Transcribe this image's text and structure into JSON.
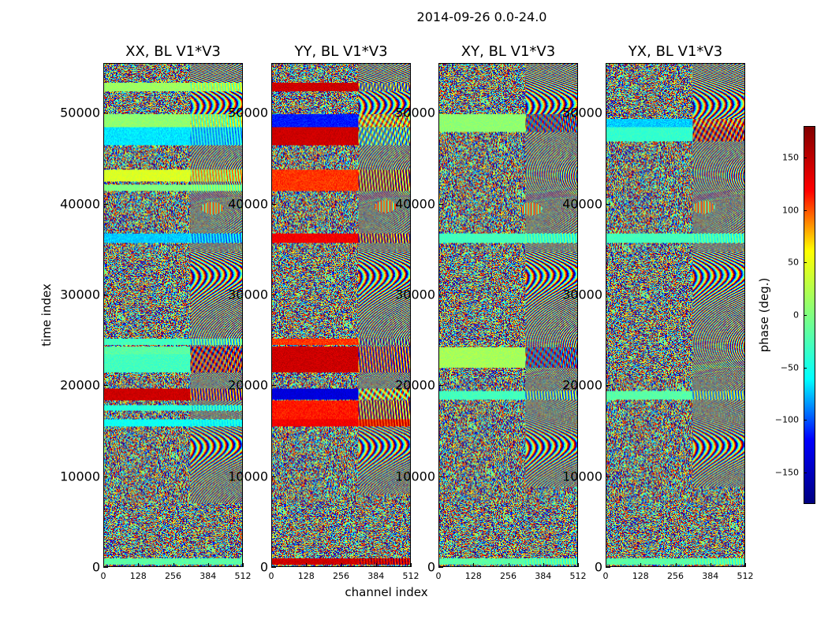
{
  "title": "2014-09-26 0.0-24.0",
  "xlabel": "channel index",
  "ylabel": "time index",
  "colorbar_label": "phase (deg.)",
  "colors": {
    "jet": [
      "#000080",
      "#0000ff",
      "#00ffff",
      "#80ff80",
      "#ffff00",
      "#ff0000",
      "#800000"
    ],
    "axis": "#000000",
    "background": "#ffffff"
  },
  "chart_data": {
    "type": "heatmap",
    "colormap": "jet",
    "x_range": [
      0,
      512
    ],
    "y_range": [
      0,
      55500
    ],
    "x_ticks": [
      0,
      128,
      256,
      384,
      512
    ],
    "x_tick_labels": [
      "0",
      "128",
      "256",
      "384",
      "512"
    ],
    "y_ticks": [
      0,
      10000,
      20000,
      30000,
      40000,
      50000
    ],
    "y_tick_labels": [
      "0",
      "10000",
      "20000",
      "30000",
      "40000",
      "50000"
    ],
    "colorbar": {
      "range": [
        -180,
        180
      ],
      "ticks": [
        -150,
        -100,
        -50,
        0,
        50,
        100,
        150
      ],
      "tick_labels": [
        "−150",
        "−100",
        "−50",
        "0",
        "50",
        "100",
        "150"
      ]
    },
    "panels": [
      {
        "title": "XX, BL V1*V3",
        "flag_bands": [
          [
            200,
            900,
            0.45,
            0.0
          ],
          [
            15500,
            16300,
            0.35,
            0.04
          ],
          [
            17200,
            17800,
            0.38,
            0.1
          ],
          [
            18300,
            19600,
            0.9,
            0.3
          ],
          [
            21500,
            23500,
            0.42,
            0.55
          ],
          [
            23500,
            24300,
            0.45,
            0.6
          ],
          [
            24500,
            25200,
            0.42,
            0.2
          ],
          [
            35800,
            36800,
            0.3,
            0.1
          ],
          [
            41500,
            42200,
            0.5,
            0.1
          ],
          [
            42500,
            43800,
            0.62,
            0.2
          ],
          [
            46500,
            48500,
            0.32,
            0.1
          ],
          [
            48500,
            50000,
            0.52,
            0.2
          ],
          [
            52500,
            53500,
            0.54,
            0.15
          ]
        ],
        "stripe_bands": [
          [
            7000,
            55500,
            0.12
          ],
          [
            8800,
            9100,
            0.0
          ],
          [
            34500,
            35000,
            0.0
          ],
          [
            47200,
            47800,
            0.0
          ]
        ],
        "hot_spot": [
          400,
          39600
        ]
      },
      {
        "title": "YY, BL V1*V3",
        "flag_bands": [
          [
            200,
            900,
            0.9,
            0.1
          ],
          [
            15500,
            16300,
            0.85,
            0.1
          ],
          [
            16300,
            18300,
            0.82,
            0.3
          ],
          [
            18400,
            19600,
            0.12,
            0.7
          ],
          [
            21500,
            24300,
            0.9,
            0.3
          ],
          [
            24500,
            25200,
            0.8,
            0.4
          ],
          [
            35800,
            36800,
            0.85,
            0.3
          ],
          [
            41500,
            43800,
            0.8,
            0.3
          ],
          [
            46500,
            48500,
            0.9,
            0.5
          ],
          [
            48500,
            50000,
            0.18,
            0.6
          ],
          [
            52500,
            53500,
            0.9,
            0.4
          ]
        ],
        "stripe_bands": [
          [
            8000,
            55500,
            0.12
          ],
          [
            8800,
            9100,
            0.0
          ],
          [
            34500,
            35000,
            0.0
          ],
          [
            47200,
            47800,
            0.0
          ]
        ],
        "hot_spot": [
          420,
          39800
        ]
      },
      {
        "title": "XY, BL V1*V3",
        "flag_bands": [
          [
            200,
            900,
            0.45,
            0.1
          ],
          [
            18400,
            19400,
            0.42,
            0.3
          ],
          [
            22000,
            24200,
            0.55,
            0.5
          ],
          [
            35800,
            36800,
            0.42,
            0.1
          ],
          [
            48000,
            50000,
            0.52,
            0.5
          ]
        ],
        "stripe_bands": [
          [
            9000,
            55500,
            0.1
          ],
          [
            8800,
            9100,
            0.0
          ],
          [
            34500,
            35000,
            0.0
          ],
          [
            47200,
            47800,
            0.0
          ]
        ],
        "hot_spot": [
          340,
          39500
        ]
      },
      {
        "title": "YX, BL V1*V3",
        "flag_bands": [
          [
            200,
            900,
            0.45,
            0.1
          ],
          [
            18400,
            19400,
            0.45,
            0.3
          ],
          [
            35800,
            36800,
            0.42,
            0.1
          ],
          [
            47000,
            48500,
            0.4,
            0.6
          ],
          [
            48500,
            49500,
            0.3,
            0.6
          ]
        ],
        "stripe_bands": [
          [
            9000,
            55500,
            0.1
          ],
          [
            8800,
            9100,
            0.0
          ],
          [
            34500,
            35000,
            0.0
          ],
          [
            47200,
            47800,
            0.0
          ]
        ],
        "hot_spot": [
          360,
          39700
        ]
      }
    ]
  }
}
